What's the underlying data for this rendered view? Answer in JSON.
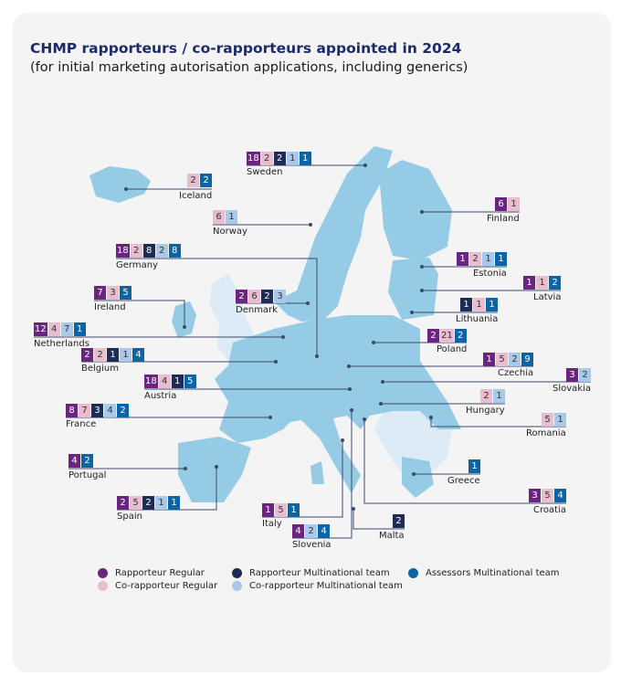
{
  "title": "CHMP rapporteurs / co-rapporteurs appointed in 2024",
  "subtitle": "(for initial marketing autorisation applications, including generics)",
  "categories": {
    "rr": {
      "label": "Rapporteur Regular",
      "color": "#6b2580",
      "text": "#ffffff"
    },
    "cr": {
      "label": "Co-rapporteur Regular",
      "color": "#e8bdd0",
      "text": "#333333"
    },
    "rm": {
      "label": "Rapporteur Multinational team",
      "color": "#1d2b55",
      "text": "#ffffff"
    },
    "cm": {
      "label": "Co-rapporteur Multinational team",
      "color": "#a9c9ea",
      "text": "#333333"
    },
    "am": {
      "label": "Assessors Multinational team",
      "color": "#0b64a6",
      "text": "#ffffff"
    }
  },
  "colors": {
    "map_member": "#96cbe6",
    "map_other": "#dcebf5",
    "leader": "#3a4a6a"
  },
  "countries": [
    {
      "name": "Sweden",
      "values": [
        [
          "rr",
          18
        ],
        [
          "cr",
          2
        ],
        [
          "rm",
          2
        ],
        [
          "cm",
          1
        ],
        [
          "am",
          1
        ]
      ]
    },
    {
      "name": "Iceland",
      "values": [
        [
          "cr",
          2
        ],
        [
          "am",
          2
        ]
      ]
    },
    {
      "name": "Norway",
      "values": [
        [
          "cr",
          6
        ],
        [
          "cm",
          1
        ]
      ]
    },
    {
      "name": "Germany",
      "values": [
        [
          "rr",
          18
        ],
        [
          "cr",
          2
        ],
        [
          "rm",
          8
        ],
        [
          "cm",
          2
        ],
        [
          "am",
          8
        ]
      ]
    },
    {
      "name": "Finland",
      "values": [
        [
          "rr",
          6
        ],
        [
          "cr",
          1
        ]
      ]
    },
    {
      "name": "Ireland",
      "values": [
        [
          "rr",
          7
        ],
        [
          "cr",
          3
        ],
        [
          "am",
          5
        ]
      ]
    },
    {
      "name": "Denmark",
      "values": [
        [
          "rr",
          2
        ],
        [
          "cr",
          6
        ],
        [
          "rm",
          2
        ],
        [
          "cm",
          3
        ]
      ]
    },
    {
      "name": "Estonia",
      "values": [
        [
          "rr",
          1
        ],
        [
          "cr",
          2
        ],
        [
          "cm",
          1
        ],
        [
          "am",
          1
        ]
      ]
    },
    {
      "name": "Latvia",
      "values": [
        [
          "rr",
          1
        ],
        [
          "cr",
          1
        ],
        [
          "am",
          2
        ]
      ]
    },
    {
      "name": "Lithuania",
      "values": [
        [
          "rm",
          1
        ],
        [
          "cr",
          1
        ],
        [
          "am",
          1
        ]
      ]
    },
    {
      "name": "Netherlands",
      "values": [
        [
          "rr",
          12
        ],
        [
          "cr",
          4
        ],
        [
          "cm",
          7
        ],
        [
          "am",
          1
        ]
      ]
    },
    {
      "name": "Poland",
      "values": [
        [
          "rr",
          2
        ],
        [
          "cr",
          21
        ],
        [
          "am",
          2
        ]
      ]
    },
    {
      "name": "Belgium",
      "values": [
        [
          "rr",
          2
        ],
        [
          "cr",
          2
        ],
        [
          "rm",
          1
        ],
        [
          "cm",
          1
        ],
        [
          "am",
          4
        ]
      ]
    },
    {
      "name": "Czechia",
      "values": [
        [
          "rr",
          1
        ],
        [
          "cr",
          5
        ],
        [
          "cm",
          2
        ],
        [
          "am",
          9
        ]
      ]
    },
    {
      "name": "Slovakia",
      "values": [
        [
          "rr",
          3
        ],
        [
          "cm",
          2
        ]
      ]
    },
    {
      "name": "Austria",
      "values": [
        [
          "rr",
          18
        ],
        [
          "cr",
          4
        ],
        [
          "rm",
          1
        ],
        [
          "am",
          5
        ]
      ]
    },
    {
      "name": "Hungary",
      "values": [
        [
          "cr",
          2
        ],
        [
          "cm",
          1
        ]
      ]
    },
    {
      "name": "France",
      "values": [
        [
          "rr",
          8
        ],
        [
          "cr",
          7
        ],
        [
          "rm",
          3
        ],
        [
          "cm",
          4
        ],
        [
          "am",
          2
        ]
      ]
    },
    {
      "name": "Romania",
      "values": [
        [
          "cr",
          5
        ],
        [
          "cm",
          1
        ]
      ]
    },
    {
      "name": "Greece",
      "values": [
        [
          "am",
          1
        ]
      ]
    },
    {
      "name": "Portugal",
      "values": [
        [
          "rr",
          4
        ],
        [
          "am",
          2
        ]
      ]
    },
    {
      "name": "Croatia",
      "values": [
        [
          "rr",
          3
        ],
        [
          "cr",
          5
        ],
        [
          "am",
          4
        ]
      ]
    },
    {
      "name": "Spain",
      "values": [
        [
          "rr",
          2
        ],
        [
          "cr",
          5
        ],
        [
          "rm",
          2
        ],
        [
          "cm",
          1
        ],
        [
          "am",
          1
        ]
      ]
    },
    {
      "name": "Italy",
      "values": [
        [
          "rr",
          1
        ],
        [
          "cr",
          5
        ],
        [
          "am",
          1
        ]
      ]
    },
    {
      "name": "Malta",
      "values": [
        [
          "rm",
          2
        ]
      ]
    },
    {
      "name": "Slovenia",
      "values": [
        [
          "rr",
          4
        ],
        [
          "cm",
          2
        ],
        [
          "am",
          4
        ]
      ]
    }
  ]
}
